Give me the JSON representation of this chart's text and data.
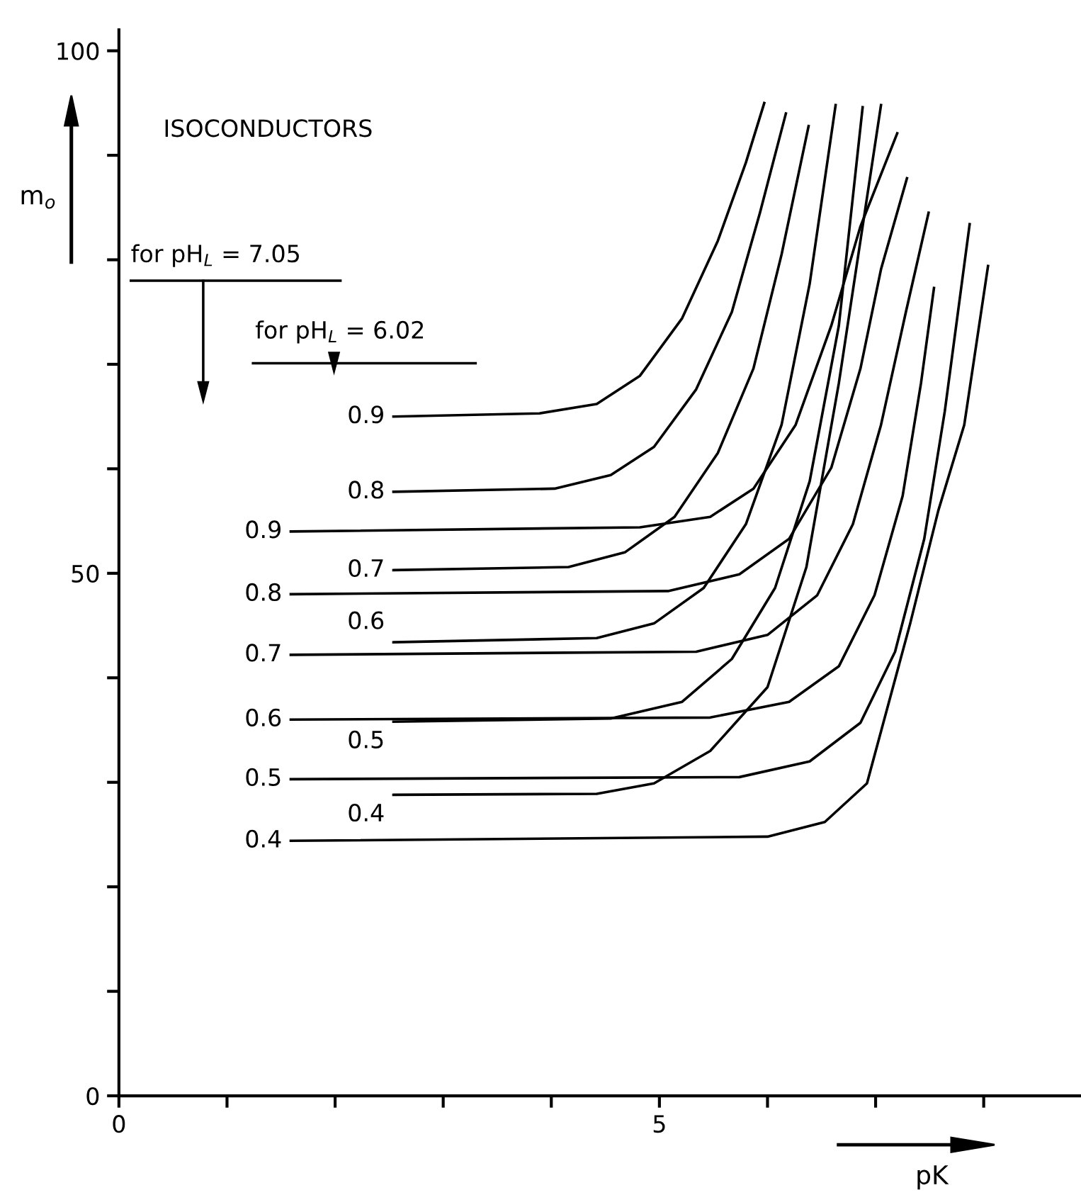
{
  "chart_data": {
    "type": "line",
    "xlabel": "pK",
    "ylabel": "m$_{o}$",
    "annotations": [
      "ISOCONDUCTORS",
      "for pH$_{L}$ = 7.05",
      "for pH$_{L}$ = 6.02"
    ],
    "xlim": [
      0,
      8.9
    ],
    "ylim": [
      0,
      102
    ],
    "xticks": [
      0,
      {
        "value": 1,
        "label": null
      },
      {
        "value": 2,
        "label": null
      },
      {
        "value": 3,
        "label": null
      },
      {
        "value": 4,
        "label": null
      },
      5,
      {
        "value": 6,
        "label": null
      },
      {
        "value": 7,
        "label": null
      },
      {
        "value": 8,
        "label": null
      }
    ],
    "yticks": [
      0,
      {
        "value": 10,
        "label": null
      },
      {
        "value": 20,
        "label": null
      },
      {
        "value": 30,
        "label": null
      },
      {
        "value": 40,
        "label": null
      },
      50,
      {
        "value": 60,
        "label": null
      },
      {
        "value": 70,
        "label": null
      },
      {
        "value": 80,
        "label": null
      },
      {
        "value": 90,
        "label": null
      },
      100
    ],
    "grid": false,
    "legend": false,
    "marker": "none",
    "line_style": "solid",
    "series": [
      {
        "name": "0.9",
        "color": "#000000",
        "x": [
          1.59,
          4.82,
          5.47,
          5.87,
          6.26,
          6.59,
          6.86,
          7.2
        ],
        "values": [
          54.0,
          54.4,
          55.4,
          58.1,
          64.2,
          73.7,
          83.2,
          92.1
        ]
      },
      {
        "name": "0.8",
        "color": "#000000",
        "x": [
          1.59,
          5.08,
          5.74,
          6.2,
          6.59,
          6.86,
          7.05,
          7.29
        ],
        "values": [
          48.0,
          48.3,
          49.9,
          53.3,
          60.1,
          69.6,
          79.1,
          87.8
        ]
      },
      {
        "name": "0.7",
        "color": "#000000",
        "x": [
          1.59,
          5.34,
          6.0,
          6.46,
          6.79,
          7.05,
          7.28,
          7.49
        ],
        "values": [
          42.2,
          42.5,
          44.1,
          47.9,
          54.7,
          64.2,
          75.0,
          84.5
        ]
      },
      {
        "name": "0.6",
        "color": "#000000",
        "x": [
          1.59,
          5.47,
          6.2,
          6.66,
          6.99,
          7.25,
          7.42,
          7.54
        ],
        "values": [
          36.0,
          36.2,
          37.7,
          41.1,
          47.9,
          57.4,
          68.2,
          77.3
        ]
      },
      {
        "name": "0.5",
        "color": "#000000",
        "x": [
          1.59,
          5.74,
          6.39,
          6.86,
          7.18,
          7.45,
          7.64,
          7.87
        ],
        "values": [
          30.3,
          30.5,
          32.0,
          35.7,
          42.5,
          53.3,
          65.5,
          83.4
        ]
      },
      {
        "name": "0.4",
        "color": "#000000",
        "x": [
          1.59,
          6.0,
          6.53,
          6.92,
          7.32,
          7.58,
          7.82,
          8.04
        ],
        "values": [
          24.4,
          24.8,
          26.2,
          29.9,
          45.2,
          56.0,
          64.2,
          79.4
        ]
      },
      {
        "name": "0.9",
        "color": "#000000",
        "x": [
          2.54,
          3.89,
          4.42,
          4.82,
          5.21,
          5.54,
          5.8,
          5.97
        ],
        "values": [
          65.0,
          65.3,
          66.2,
          68.9,
          74.4,
          81.8,
          89.3,
          95.0
        ]
      },
      {
        "name": "0.8",
        "color": "#000000",
        "x": [
          2.54,
          4.03,
          4.55,
          4.95,
          5.34,
          5.67,
          5.93,
          6.17
        ],
        "values": [
          57.8,
          58.1,
          59.4,
          62.1,
          67.6,
          75.0,
          84.5,
          94.0
        ]
      },
      {
        "name": "0.7",
        "color": "#000000",
        "x": [
          2.54,
          4.16,
          4.68,
          5.14,
          5.54,
          5.87,
          6.13,
          6.38
        ],
        "values": [
          50.3,
          50.6,
          52.0,
          55.4,
          61.5,
          69.6,
          80.5,
          92.8
        ]
      },
      {
        "name": "0.6",
        "color": "#000000",
        "x": [
          2.54,
          4.42,
          4.95,
          5.41,
          5.8,
          6.13,
          6.39,
          6.63
        ],
        "values": [
          43.4,
          43.8,
          45.2,
          48.6,
          54.7,
          64.2,
          77.7,
          94.8
        ]
      },
      {
        "name": "0.5",
        "color": "#000000",
        "x": [
          2.54,
          4.55,
          5.21,
          5.67,
          6.07,
          6.39,
          6.66,
          6.88
        ],
        "values": [
          35.8,
          36.1,
          37.7,
          41.8,
          48.6,
          58.8,
          73.7,
          94.6
        ]
      },
      {
        "name": "0.4",
        "color": "#000000",
        "x": [
          2.54,
          4.42,
          4.95,
          5.47,
          6.0,
          6.36,
          6.66,
          7.05
        ],
        "values": [
          28.8,
          28.9,
          29.9,
          33.0,
          39.1,
          50.6,
          68.2,
          94.8
        ]
      }
    ]
  }
}
